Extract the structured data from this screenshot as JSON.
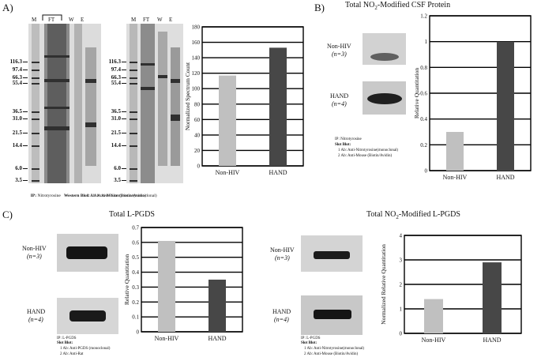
{
  "panel_a": {
    "letter": "A)",
    "gel1_lanes": [
      "M",
      "FT",
      "W",
      "E"
    ],
    "gel2_lanes": [
      "M",
      "FT",
      "W",
      "E"
    ],
    "markers": [
      "116.3",
      "97.4",
      "66.3",
      "55.4",
      "36.5",
      "31.0",
      "21.5",
      "14.4",
      "6.0",
      "3.5"
    ],
    "ip_label": "IP:",
    "ip_value": "Nitrotyrosine",
    "wb_label": "Western Blot:",
    "wb_line1": "1 Ab: Anti-Nitrotyrosine(monoclonal)",
    "wb_line2": "2 Ab: Anti-Mouse (Biotin/Avidin)"
  },
  "panel_b": {
    "letter": "B)",
    "title_pre": "Total NO",
    "title_sub": "2",
    "title_post": "-Modified CSF Protein",
    "label_nonhiv": "Non-HIV",
    "n_nonhiv": "(n=3)",
    "label_hand": "HAND",
    "n_hand": "(n=4)",
    "ip_line": "IP: Nitrotyrosine",
    "slot_line": "Slot Blot:",
    "ab1": "1 Ab: Anti-Nitrotyrosine(monoclonal)",
    "ab2": "2 Ab: Anti-Mouse (Biotin/Avidin)"
  },
  "panel_c": {
    "letter": "C)",
    "left_title": "Total L-PGDS",
    "right_title_pre": "Total NO",
    "right_title_sub": "2",
    "right_title_post": "-Modified L-PGDS",
    "label_nonhiv": "Non-HIV",
    "n_nonhiv": "(n=3)",
    "label_hand": "HAND",
    "n_hand": "(n=4)",
    "left_ip": "IP: L-PGDS",
    "left_slot": "Slot Blot:",
    "left_ab1": "1 Ab: Anti-PGDS (monoclonal)",
    "left_ab2": "2 Ab: Anti-Rat",
    "right_ip": "IP: L-PGDS",
    "right_slot": "Slot Blot:",
    "right_ab1": "1 Ab: Anti-Nitrotyrosine(monoclonal)",
    "right_ab2": "2 Ab: Anti-Mouse (Biotin/Avidin)"
  },
  "chart_data": [
    {
      "type": "bar",
      "categories": [
        "Non-HIV",
        "HAND"
      ],
      "values": [
        117,
        153
      ],
      "colors": [
        "#c0c0c0",
        "#474747"
      ],
      "ylabel": "Normalized Spectrum Count",
      "ylim": [
        0,
        180
      ],
      "yticks": [
        "0",
        "20",
        "40",
        "60",
        "80",
        "100",
        "120",
        "140",
        "160",
        "180"
      ]
    },
    {
      "type": "bar",
      "categories": [
        "Non-HIV",
        "HAND"
      ],
      "values": [
        0.3,
        1.0
      ],
      "colors": [
        "#c0c0c0",
        "#474747"
      ],
      "ylabel": "Relative Quantitation",
      "ylim": [
        0,
        1.2
      ],
      "yticks": [
        "0",
        "0.2",
        "0.4",
        "0.6",
        "0.8",
        "1",
        "1.2"
      ]
    },
    {
      "type": "bar",
      "categories": [
        "Non-HIV",
        "HAND"
      ],
      "values": [
        0.61,
        0.35
      ],
      "colors": [
        "#c0c0c0",
        "#474747"
      ],
      "ylabel": "Relative Quantitation",
      "ylim": [
        0,
        0.7
      ],
      "yticks": [
        "0",
        "0.1",
        "0.2",
        "0.3",
        "0.4",
        "0.5",
        "0.6",
        "0.7"
      ]
    },
    {
      "type": "bar",
      "categories": [
        "Non-HIV",
        "HAND"
      ],
      "values": [
        1.4,
        2.9
      ],
      "colors": [
        "#c0c0c0",
        "#474747"
      ],
      "ylabel": "Normalized Relative Quantitation",
      "ylim": [
        0,
        4
      ],
      "yticks": [
        "0",
        "1",
        "2",
        "3",
        "4"
      ]
    }
  ]
}
